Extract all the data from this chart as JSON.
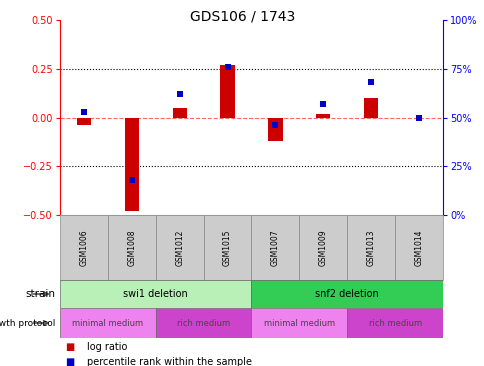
{
  "title": "GDS106 / 1743",
  "samples": [
    "GSM1006",
    "GSM1008",
    "GSM1012",
    "GSM1015",
    "GSM1007",
    "GSM1009",
    "GSM1013",
    "GSM1014"
  ],
  "log_ratio": [
    -0.04,
    -0.48,
    0.05,
    0.27,
    -0.12,
    0.02,
    0.1,
    0.0
  ],
  "percentile_rank": [
    53,
    18,
    62,
    76,
    46,
    57,
    68,
    50
  ],
  "ylim_left": [
    -0.5,
    0.5
  ],
  "ylim_right": [
    0,
    100
  ],
  "yticks_left": [
    -0.5,
    -0.25,
    0.0,
    0.25,
    0.5
  ],
  "yticks_right": [
    0,
    25,
    50,
    75,
    100
  ],
  "ytick_labels_right": [
    "0%",
    "25%",
    "50%",
    "75%",
    "100%"
  ],
  "hlines_dotted": [
    0.25,
    -0.25
  ],
  "hline_zero": 0.0,
  "strain_groups": [
    {
      "label": "swi1 deletion",
      "start": 0,
      "end": 4,
      "color": "#b8f0b8"
    },
    {
      "label": "snf2 deletion",
      "start": 4,
      "end": 8,
      "color": "#33cc55"
    }
  ],
  "growth_protocol_groups": [
    {
      "label": "minimal medium",
      "start": 0,
      "end": 2,
      "color": "#ee82ee"
    },
    {
      "label": "rich medium",
      "start": 2,
      "end": 4,
      "color": "#cc44cc"
    },
    {
      "label": "minimal medium",
      "start": 4,
      "end": 6,
      "color": "#ee82ee"
    },
    {
      "label": "rich medium",
      "start": 6,
      "end": 8,
      "color": "#cc44cc"
    }
  ],
  "bar_color_red": "#cc0000",
  "bar_color_blue": "#0000cc",
  "bar_width": 0.3,
  "background_color": "#ffffff",
  "plot_bg": "#ffffff",
  "zero_line_color": "#ff6666",
  "dotted_line_color": "#000000",
  "title_fontsize": 10,
  "tick_fontsize": 7,
  "sample_box_color": "#cccccc",
  "sample_box_edge": "#888888"
}
